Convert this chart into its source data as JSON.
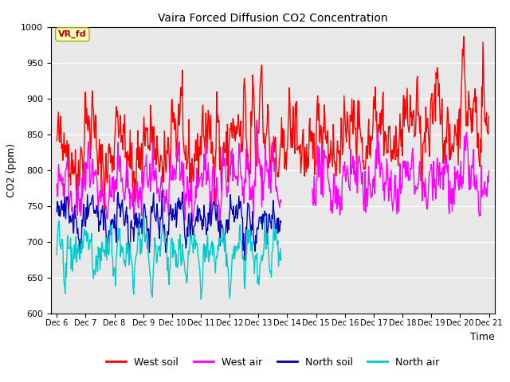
{
  "title": "Vaira Forced Diffusion CO2 Concentration",
  "xlabel": "Time",
  "ylabel": "CO2 (ppm)",
  "ylim": [
    600,
    1000
  ],
  "xlim_days": [
    5.8,
    21.2
  ],
  "annotation_text": "VR_fd",
  "series_colors": {
    "west_soil": "#ff0000",
    "west_air": "#ff00ff",
    "north_soil": "#0000bb",
    "north_air": "#00cccc"
  },
  "legend_labels": [
    "West soil",
    "West air",
    "North soil",
    "North air"
  ],
  "background_color": "#e8e8e8",
  "tick_labels": [
    "Dec 6",
    "Dec 7",
    "Dec 8",
    "Dec 9",
    "Dec 10",
    "Dec 11",
    "Dec 12",
    "Dec 13",
    "Dec 14",
    "Dec 15",
    "Dec 16",
    "Dec 17",
    "Dec 18",
    "Dec 19",
    "Dec 20",
    "Dec 21"
  ],
  "tick_positions": [
    6,
    7,
    8,
    9,
    10,
    11,
    12,
    13,
    14,
    15,
    16,
    17,
    18,
    19,
    20,
    21
  ],
  "yticks": [
    600,
    650,
    700,
    750,
    800,
    850,
    900,
    950,
    1000
  ],
  "line_width": 1.0,
  "figure_width": 6.4,
  "figure_height": 4.8,
  "dpi": 100
}
